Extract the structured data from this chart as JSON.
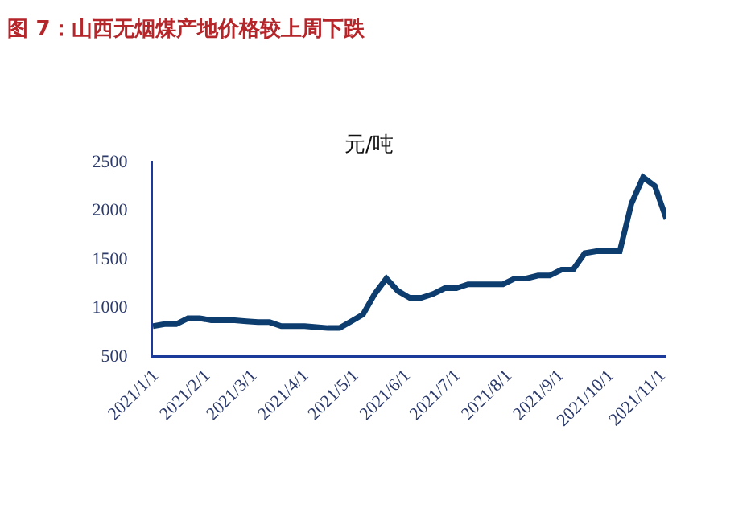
{
  "chart_data": {
    "type": "line",
    "title": "图 7：山西无烟煤产地价格较上周下跌",
    "ylabel": "元/吨",
    "x": [
      "2021-01-01",
      "2021-01-08",
      "2021-01-15",
      "2021-01-22",
      "2021-01-29",
      "2021-02-05",
      "2021-02-12",
      "2021-02-19",
      "2021-02-26",
      "2021-03-05",
      "2021-03-12",
      "2021-03-19",
      "2021-03-26",
      "2021-04-02",
      "2021-04-09",
      "2021-04-16",
      "2021-04-23",
      "2021-04-30",
      "2021-05-07",
      "2021-05-14",
      "2021-05-21",
      "2021-05-28",
      "2021-06-04",
      "2021-06-11",
      "2021-06-18",
      "2021-06-25",
      "2021-07-02",
      "2021-07-09",
      "2021-07-16",
      "2021-07-23",
      "2021-07-30",
      "2021-08-06",
      "2021-08-13",
      "2021-08-20",
      "2021-08-27",
      "2021-09-03",
      "2021-09-10",
      "2021-09-17",
      "2021-09-24",
      "2021-10-01",
      "2021-10-08",
      "2021-10-15",
      "2021-10-22",
      "2021-10-29",
      "2021-11-05"
    ],
    "series": [
      {
        "color": "#0d3c6e",
        "values": [
          800,
          820,
          820,
          880,
          880,
          860,
          860,
          860,
          850,
          840,
          840,
          800,
          800,
          800,
          790,
          780,
          780,
          850,
          920,
          1130,
          1290,
          1160,
          1090,
          1090,
          1130,
          1190,
          1190,
          1230,
          1230,
          1230,
          1230,
          1290,
          1290,
          1320,
          1320,
          1380,
          1380,
          1550,
          1570,
          1570,
          1570,
          2060,
          2330,
          2240,
          1900
        ]
      }
    ],
    "xlim": [
      "2021-01-01",
      "2021-11-05"
    ],
    "xticks": [
      {
        "value": "2021-01-01",
        "label": "2021/1/1"
      },
      {
        "value": "2021-02-01",
        "label": "2021/2/1"
      },
      {
        "value": "2021-03-01",
        "label": "2021/3/1"
      },
      {
        "value": "2021-04-01",
        "label": "2021/4/1"
      },
      {
        "value": "2021-05-01",
        "label": "2021/5/1"
      },
      {
        "value": "2021-06-01",
        "label": "2021/6/1"
      },
      {
        "value": "2021-07-01",
        "label": "2021/7/1"
      },
      {
        "value": "2021-08-01",
        "label": "2021/8/1"
      },
      {
        "value": "2021-09-01",
        "label": "2021/9/1"
      },
      {
        "value": "2021-10-01",
        "label": "2021/10/1"
      },
      {
        "value": "2021-11-01",
        "label": "2021/11/1"
      }
    ],
    "ylim": [
      500,
      2500
    ],
    "yticks": [
      500,
      1000,
      1500,
      2000,
      2500
    ],
    "grid": false,
    "marker": "none",
    "line_style": "solid"
  }
}
